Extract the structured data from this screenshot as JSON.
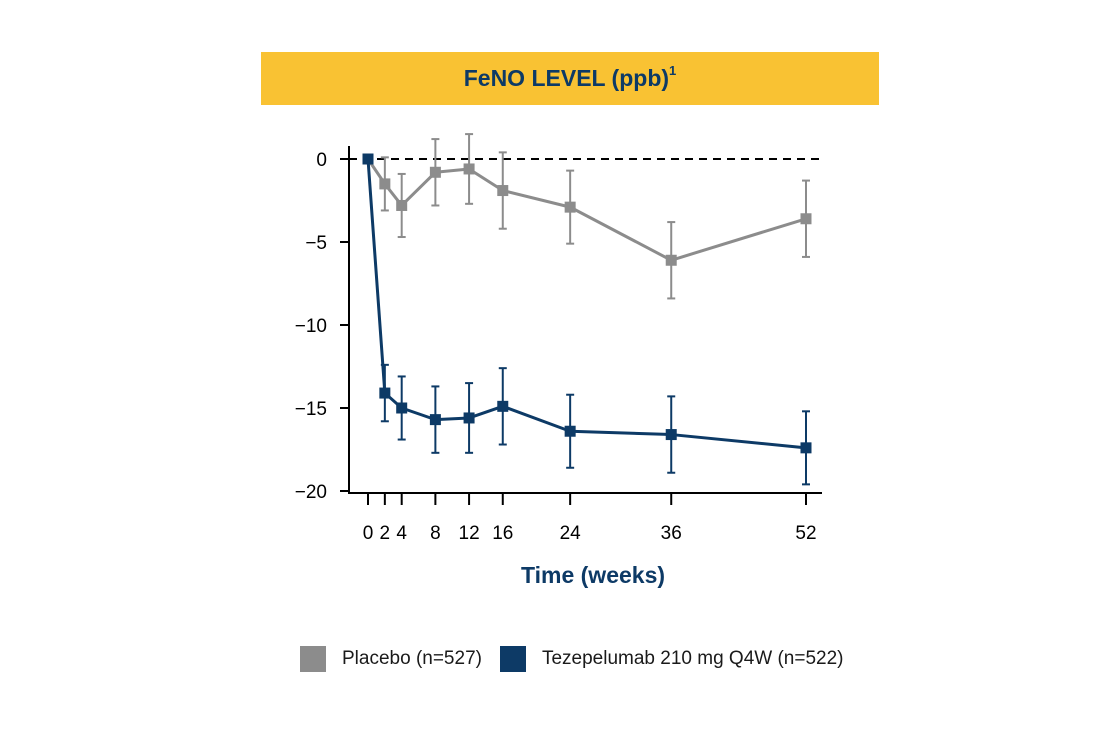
{
  "title": {
    "main": "FeNO LEVEL (ppb)",
    "superscript": "1"
  },
  "chart_data": {
    "type": "line",
    "xlabel": "Time (weeks)",
    "ylabel": "",
    "x": [
      0,
      2,
      4,
      8,
      12,
      16,
      24,
      36,
      52
    ],
    "xticks": [
      "0",
      "2",
      "4",
      "8",
      "12",
      "16",
      "24",
      "36",
      "52"
    ],
    "yticks": [
      0,
      -5,
      -10,
      -15,
      -20
    ],
    "ytick_labels": [
      "0",
      "−5",
      "−10",
      "−15",
      "−20"
    ],
    "xlim": [
      0,
      52
    ],
    "ylim": [
      -20,
      0
    ],
    "reference_line": {
      "y": 0,
      "style": "dashed"
    },
    "grid": false,
    "legend_position": "bottom",
    "series": [
      {
        "name": "Placebo (n=527)",
        "color": "#8c8c8c",
        "values": [
          0,
          -1.5,
          -2.8,
          -0.8,
          -0.6,
          -1.9,
          -2.9,
          -6.1,
          -3.6
        ],
        "error": [
          0,
          1.6,
          1.9,
          2.0,
          2.1,
          2.3,
          2.2,
          2.3,
          2.3
        ]
      },
      {
        "name": "Tezepelumab 210 mg Q4W (n=522)",
        "color": "#0d3a66",
        "values": [
          0,
          -14.1,
          -15.0,
          -15.7,
          -15.6,
          -14.9,
          -16.4,
          -16.6,
          -17.4
        ],
        "error": [
          0,
          1.7,
          1.9,
          2.0,
          2.1,
          2.3,
          2.2,
          2.3,
          2.2
        ]
      }
    ]
  }
}
